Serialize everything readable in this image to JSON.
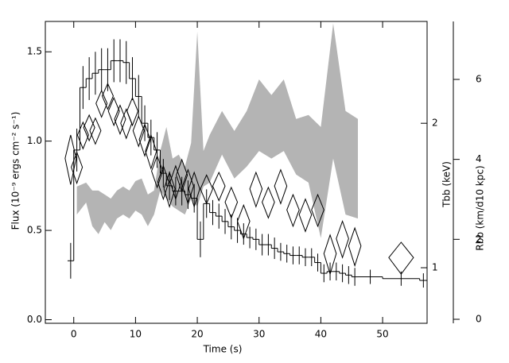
{
  "chart_data": {
    "type": "step",
    "x_label": "Time (s)",
    "y_label": "Flux (10⁻⁹ ergs cm⁻² s⁻¹)",
    "y2_label": "Tbb (keV)",
    "y3_label": "Rbb (km/d10 kpc)",
    "xlim": [
      -4.6,
      57.2
    ],
    "xticks": [
      0,
      10,
      20,
      30,
      40,
      50
    ],
    "ylim": [
      -0.02,
      1.67
    ],
    "yticks": [
      {
        "value": 0,
        "label": "0.0"
      },
      {
        "value": 0.5,
        "label": "0.5"
      },
      {
        "value": 1,
        "label": "1.0"
      },
      {
        "value": 1.5,
        "label": "1.5"
      }
    ],
    "y2lim": [
      0.766,
      3.26
    ],
    "y2log": true,
    "y2ticks": [
      1,
      2
    ],
    "y3lim": [
      -0.1,
      7.45
    ],
    "y3ticks": [
      0,
      2,
      4,
      6
    ],
    "flux": {
      "color": "#000000",
      "bins": [
        -1,
        0,
        1,
        2,
        3,
        4,
        5,
        6,
        7,
        8,
        9,
        10,
        11,
        12,
        13,
        14,
        15,
        16,
        17,
        18,
        19,
        20,
        21,
        22,
        23,
        24,
        25,
        26,
        27,
        28,
        29,
        30,
        31,
        32,
        33,
        34,
        35,
        36,
        37,
        38,
        39,
        40,
        41,
        42,
        43,
        44,
        45,
        46,
        50,
        56,
        57.2
      ],
      "values": [
        0.33,
        0.95,
        1.3,
        1.35,
        1.38,
        1.4,
        1.4,
        1.45,
        1.45,
        1.44,
        1.35,
        1.25,
        1.1,
        1.02,
        0.95,
        0.82,
        0.75,
        0.72,
        0.72,
        0.7,
        0.68,
        0.45,
        0.65,
        0.6,
        0.58,
        0.55,
        0.52,
        0.5,
        0.48,
        0.46,
        0.45,
        0.42,
        0.42,
        0.4,
        0.38,
        0.37,
        0.36,
        0.36,
        0.35,
        0.35,
        0.32,
        0.26,
        0.27,
        0.27,
        0.26,
        0.25,
        0.24,
        0.24,
        0.23,
        0.22
      ],
      "errors": [
        0.1,
        0.12,
        0.12,
        0.12,
        0.12,
        0.12,
        0.12,
        0.12,
        0.12,
        0.12,
        0.12,
        0.12,
        0.1,
        0.1,
        0.1,
        0.08,
        0.08,
        0.08,
        0.08,
        0.08,
        0.08,
        0.1,
        0.08,
        0.07,
        0.07,
        0.07,
        0.07,
        0.07,
        0.06,
        0.06,
        0.06,
        0.06,
        0.06,
        0.06,
        0.05,
        0.05,
        0.05,
        0.05,
        0.05,
        0.05,
        0.05,
        0.05,
        0.05,
        0.05,
        0.05,
        0.05,
        0.05,
        0.04,
        0.04,
        0.04
      ]
    },
    "temperature": {
      "color": "#000000",
      "x": [
        -0.5,
        0.5,
        1.5,
        2.5,
        3.5,
        4.5,
        5.5,
        6.5,
        7.5,
        8.5,
        9.5,
        10.5,
        11.5,
        12.5,
        13.5,
        14.5,
        15.5,
        16.5,
        17.5,
        18.5,
        19.5,
        21.5,
        23.5,
        25.5,
        27.5,
        29.5,
        31.5,
        33.5,
        35.5,
        37.5,
        39.5,
        41.5,
        43.5,
        45.5,
        53
      ],
      "values": [
        1.69,
        1.62,
        1.89,
        1.96,
        1.93,
        2.2,
        2.28,
        2.12,
        2.04,
        2.0,
        2.12,
        1.93,
        1.85,
        1.75,
        1.59,
        1.51,
        1.46,
        1.51,
        1.56,
        1.48,
        1.46,
        1.46,
        1.48,
        1.37,
        1.25,
        1.46,
        1.37,
        1.48,
        1.32,
        1.29,
        1.32,
        1.07,
        1.15,
        1.11,
        1.05
      ],
      "xerr": [
        0.9,
        0.9,
        0.9,
        0.9,
        0.9,
        0.9,
        0.9,
        0.9,
        0.9,
        0.9,
        0.9,
        0.9,
        0.9,
        0.9,
        0.9,
        0.9,
        0.9,
        0.9,
        0.9,
        0.9,
        0.9,
        1,
        1,
        1,
        1,
        1,
        1,
        1,
        1,
        1,
        1,
        1,
        1,
        1,
        2
      ],
      "yerr": [
        0.2,
        0.12,
        0.12,
        0.12,
        0.12,
        0.14,
        0.14,
        0.14,
        0.14,
        0.14,
        0.14,
        0.14,
        0.14,
        0.14,
        0.12,
        0.12,
        0.12,
        0.12,
        0.12,
        0.12,
        0.12,
        0.1,
        0.1,
        0.1,
        0.1,
        0.12,
        0.1,
        0.12,
        0.1,
        0.1,
        0.1,
        0.1,
        0.1,
        0.1,
        0.08
      ]
    },
    "radius": {
      "color": "#b4b4b4",
      "x": [
        0.5,
        2,
        3,
        4,
        5,
        6,
        7,
        8,
        9,
        10,
        11,
        12,
        13,
        14,
        15,
        16,
        17,
        18,
        19,
        20,
        21,
        22,
        24,
        26,
        28,
        30,
        32,
        34,
        36,
        38,
        40,
        42,
        44,
        46
      ],
      "upper": [
        3.32,
        3.42,
        3.22,
        3.22,
        3.12,
        3.02,
        3.22,
        3.32,
        3.22,
        3.46,
        3.52,
        3.12,
        3.22,
        4.21,
        4.81,
        4.02,
        4.12,
        3.82,
        4.41,
        7.2,
        4.21,
        4.61,
        5.21,
        4.71,
        5.21,
        6.0,
        5.61,
        6.0,
        5.01,
        5.11,
        4.81,
        7.4,
        5.21,
        5.01
      ],
      "lower": [
        2.62,
        2.92,
        2.33,
        2.13,
        2.43,
        2.23,
        2.52,
        2.62,
        2.52,
        2.72,
        2.62,
        2.33,
        2.62,
        3.22,
        3.02,
        2.82,
        2.72,
        2.62,
        3.02,
        2.82,
        3.32,
        3.42,
        4.12,
        3.52,
        3.82,
        4.21,
        4.02,
        4.21,
        3.62,
        3.42,
        2.03,
        4.02,
        2.62,
        2.52
      ]
    }
  }
}
